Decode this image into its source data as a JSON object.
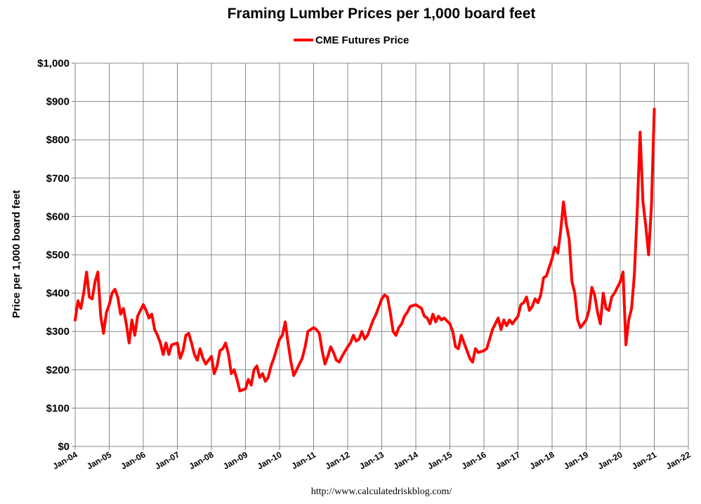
{
  "chart_data": {
    "type": "line",
    "title": "Framing Lumber Prices per 1,000 board feet",
    "ylabel": "Price per 1,000 board feet",
    "xlabel": "",
    "source": "http://www.calculatedriskblog.com/",
    "legend": {
      "position": "top-center",
      "entries": [
        "CME Futures Price"
      ]
    },
    "ylim": [
      0,
      1000
    ],
    "y_ticks": [
      0,
      100,
      200,
      300,
      400,
      500,
      600,
      700,
      800,
      900,
      1000
    ],
    "y_tick_labels": [
      "$0",
      "$100",
      "$200",
      "$300",
      "$400",
      "$500",
      "$600",
      "$700",
      "$800",
      "$900",
      "$1,000"
    ],
    "xlim": [
      "2004-01",
      "2022-01"
    ],
    "x_tick_labels": [
      "Jan-04",
      "Jan-05",
      "Jan-06",
      "Jan-07",
      "Jan-08",
      "Jan-09",
      "Jan-10",
      "Jan-11",
      "Jan-12",
      "Jan-13",
      "Jan-14",
      "Jan-15",
      "Jan-16",
      "Jan-17",
      "Jan-18",
      "Jan-19",
      "Jan-20",
      "Jan-21",
      "Jan-22"
    ],
    "grid": true,
    "series": [
      {
        "name": "CME Futures Price",
        "color": "#ff0000",
        "points": [
          [
            "2004-01",
            330
          ],
          [
            "2004-02",
            380
          ],
          [
            "2004-03",
            360
          ],
          [
            "2004-04",
            400
          ],
          [
            "2004-05",
            455
          ],
          [
            "2004-06",
            390
          ],
          [
            "2004-07",
            385
          ],
          [
            "2004-08",
            430
          ],
          [
            "2004-09",
            455
          ],
          [
            "2004-10",
            340
          ],
          [
            "2004-11",
            295
          ],
          [
            "2004-12",
            350
          ],
          [
            "2005-01",
            370
          ],
          [
            "2005-02",
            400
          ],
          [
            "2005-03",
            410
          ],
          [
            "2005-04",
            390
          ],
          [
            "2005-05",
            345
          ],
          [
            "2005-06",
            360
          ],
          [
            "2005-07",
            320
          ],
          [
            "2005-08",
            270
          ],
          [
            "2005-09",
            330
          ],
          [
            "2005-10",
            290
          ],
          [
            "2005-11",
            340
          ],
          [
            "2006-01",
            370
          ],
          [
            "2006-02",
            355
          ],
          [
            "2006-03",
            335
          ],
          [
            "2006-04",
            345
          ],
          [
            "2006-05",
            305
          ],
          [
            "2006-06",
            290
          ],
          [
            "2006-07",
            270
          ],
          [
            "2006-08",
            240
          ],
          [
            "2006-09",
            270
          ],
          [
            "2006-10",
            240
          ],
          [
            "2006-11",
            265
          ],
          [
            "2007-01",
            270
          ],
          [
            "2007-02",
            230
          ],
          [
            "2007-03",
            250
          ],
          [
            "2007-04",
            290
          ],
          [
            "2007-05",
            295
          ],
          [
            "2007-06",
            270
          ],
          [
            "2007-07",
            240
          ],
          [
            "2007-08",
            225
          ],
          [
            "2007-09",
            255
          ],
          [
            "2007-10",
            230
          ],
          [
            "2007-11",
            215
          ],
          [
            "2008-01",
            235
          ],
          [
            "2008-02",
            190
          ],
          [
            "2008-03",
            210
          ],
          [
            "2008-04",
            250
          ],
          [
            "2008-05",
            255
          ],
          [
            "2008-06",
            270
          ],
          [
            "2008-07",
            240
          ],
          [
            "2008-08",
            190
          ],
          [
            "2008-09",
            200
          ],
          [
            "2008-10",
            175
          ],
          [
            "2008-11",
            145
          ],
          [
            "2009-01",
            150
          ],
          [
            "2009-02",
            175
          ],
          [
            "2009-03",
            160
          ],
          [
            "2009-04",
            200
          ],
          [
            "2009-05",
            210
          ],
          [
            "2009-06",
            180
          ],
          [
            "2009-07",
            190
          ],
          [
            "2009-08",
            170
          ],
          [
            "2009-09",
            180
          ],
          [
            "2009-10",
            210
          ],
          [
            "2009-11",
            230
          ],
          [
            "2010-01",
            280
          ],
          [
            "2010-02",
            290
          ],
          [
            "2010-03",
            325
          ],
          [
            "2010-04",
            270
          ],
          [
            "2010-05",
            220
          ],
          [
            "2010-06",
            185
          ],
          [
            "2010-07",
            200
          ],
          [
            "2010-08",
            215
          ],
          [
            "2010-09",
            230
          ],
          [
            "2010-10",
            260
          ],
          [
            "2010-11",
            300
          ],
          [
            "2011-01",
            310
          ],
          [
            "2011-02",
            305
          ],
          [
            "2011-03",
            295
          ],
          [
            "2011-04",
            250
          ],
          [
            "2011-05",
            215
          ],
          [
            "2011-06",
            235
          ],
          [
            "2011-07",
            260
          ],
          [
            "2011-08",
            245
          ],
          [
            "2011-09",
            225
          ],
          [
            "2011-10",
            220
          ],
          [
            "2011-11",
            235
          ],
          [
            "2012-01",
            260
          ],
          [
            "2012-02",
            270
          ],
          [
            "2012-03",
            290
          ],
          [
            "2012-04",
            275
          ],
          [
            "2012-05",
            280
          ],
          [
            "2012-06",
            300
          ],
          [
            "2012-07",
            280
          ],
          [
            "2012-08",
            290
          ],
          [
            "2012-09",
            310
          ],
          [
            "2012-10",
            330
          ],
          [
            "2012-11",
            345
          ],
          [
            "2013-01",
            385
          ],
          [
            "2013-02",
            395
          ],
          [
            "2013-03",
            390
          ],
          [
            "2013-04",
            350
          ],
          [
            "2013-05",
            300
          ],
          [
            "2013-06",
            290
          ],
          [
            "2013-07",
            310
          ],
          [
            "2013-08",
            320
          ],
          [
            "2013-09",
            340
          ],
          [
            "2013-10",
            350
          ],
          [
            "2013-11",
            365
          ],
          [
            "2014-01",
            370
          ],
          [
            "2014-02",
            365
          ],
          [
            "2014-03",
            360
          ],
          [
            "2014-04",
            340
          ],
          [
            "2014-05",
            335
          ],
          [
            "2014-06",
            320
          ],
          [
            "2014-07",
            345
          ],
          [
            "2014-08",
            325
          ],
          [
            "2014-09",
            340
          ],
          [
            "2014-10",
            330
          ],
          [
            "2014-11",
            335
          ],
          [
            "2015-01",
            320
          ],
          [
            "2015-02",
            300
          ],
          [
            "2015-03",
            260
          ],
          [
            "2015-04",
            255
          ],
          [
            "2015-05",
            290
          ],
          [
            "2015-06",
            270
          ],
          [
            "2015-07",
            250
          ],
          [
            "2015-08",
            230
          ],
          [
            "2015-09",
            220
          ],
          [
            "2015-10",
            255
          ],
          [
            "2015-11",
            245
          ],
          [
            "2016-01",
            250
          ],
          [
            "2016-02",
            255
          ],
          [
            "2016-03",
            280
          ],
          [
            "2016-04",
            305
          ],
          [
            "2016-05",
            320
          ],
          [
            "2016-06",
            335
          ],
          [
            "2016-07",
            305
          ],
          [
            "2016-08",
            330
          ],
          [
            "2016-09",
            315
          ],
          [
            "2016-10",
            330
          ],
          [
            "2016-11",
            320
          ],
          [
            "2017-01",
            340
          ],
          [
            "2017-02",
            370
          ],
          [
            "2017-03",
            375
          ],
          [
            "2017-04",
            390
          ],
          [
            "2017-05",
            355
          ],
          [
            "2017-06",
            365
          ],
          [
            "2017-07",
            385
          ],
          [
            "2017-08",
            375
          ],
          [
            "2017-09",
            395
          ],
          [
            "2017-10",
            440
          ],
          [
            "2017-11",
            445
          ],
          [
            "2018-01",
            490
          ],
          [
            "2018-02",
            520
          ],
          [
            "2018-03",
            505
          ],
          [
            "2018-04",
            560
          ],
          [
            "2018-05",
            638
          ],
          [
            "2018-06",
            580
          ],
          [
            "2018-07",
            540
          ],
          [
            "2018-08",
            430
          ],
          [
            "2018-09",
            400
          ],
          [
            "2018-10",
            330
          ],
          [
            "2018-11",
            310
          ],
          [
            "2018-12",
            320
          ],
          [
            "2019-01",
            330
          ],
          [
            "2019-02",
            355
          ],
          [
            "2019-03",
            415
          ],
          [
            "2019-04",
            395
          ],
          [
            "2019-05",
            350
          ],
          [
            "2019-06",
            320
          ],
          [
            "2019-07",
            400
          ],
          [
            "2019-08",
            360
          ],
          [
            "2019-09",
            355
          ],
          [
            "2019-10",
            390
          ],
          [
            "2019-11",
            400
          ],
          [
            "2019-12",
            415
          ],
          [
            "2020-01",
            430
          ],
          [
            "2020-02",
            455
          ],
          [
            "2020-03",
            265
          ],
          [
            "2020-04",
            330
          ],
          [
            "2020-05",
            360
          ],
          [
            "2020-06",
            450
          ],
          [
            "2020-07",
            620
          ],
          [
            "2020-08",
            820
          ],
          [
            "2020-09",
            640
          ],
          [
            "2020-10",
            575
          ],
          [
            "2020-11",
            500
          ],
          [
            "2020-12",
            630
          ],
          [
            "2021-01",
            880
          ],
          [
            "2021-01",
            870
          ]
        ]
      }
    ]
  }
}
